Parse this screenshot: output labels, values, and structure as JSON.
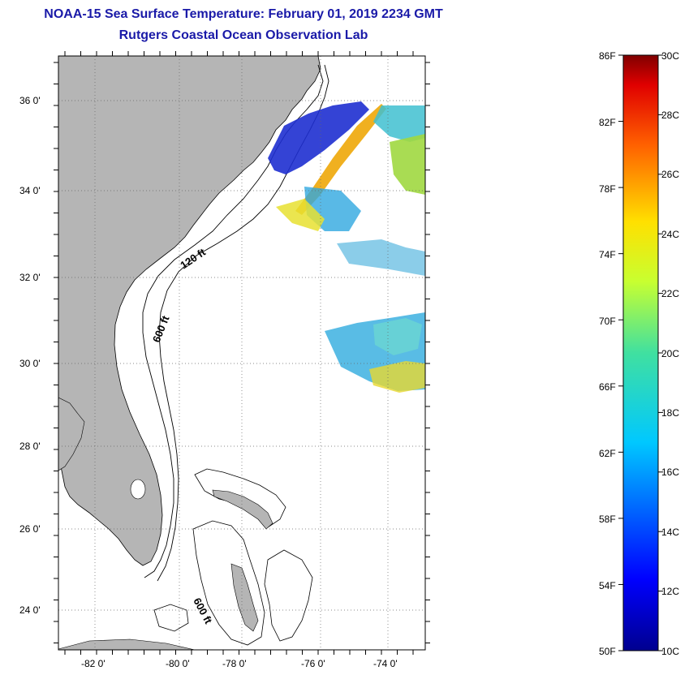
{
  "title": "NOAA-15 Sea Surface Temperature:  February 01, 2019 2234 GMT",
  "subtitle": "Rutgers Coastal Ocean Observation Lab",
  "map": {
    "lat_labels": [
      "36 0'",
      "34 0'",
      "32 0'",
      "30 0'",
      "28 0'",
      "26 0'",
      "24 0'"
    ],
    "lon_labels": [
      "-82 0'",
      "-80 0'",
      "-78 0'",
      "-76 0'",
      "-74 0'"
    ],
    "contour_labels": [
      "120 ft",
      "600 ft",
      "600 ft"
    ],
    "land_color": "#b5b5b5"
  },
  "colorbar": {
    "f_labels": [
      "86F",
      "82F",
      "78F",
      "74F",
      "70F",
      "66F",
      "62F",
      "58F",
      "54F",
      "50F"
    ],
    "c_labels": [
      "30C",
      "28C",
      "26C",
      "24C",
      "22C",
      "20C",
      "18C",
      "16C",
      "14C",
      "12C",
      "10C"
    ],
    "range_c": [
      10,
      30
    ],
    "range_f": [
      50,
      86
    ]
  }
}
